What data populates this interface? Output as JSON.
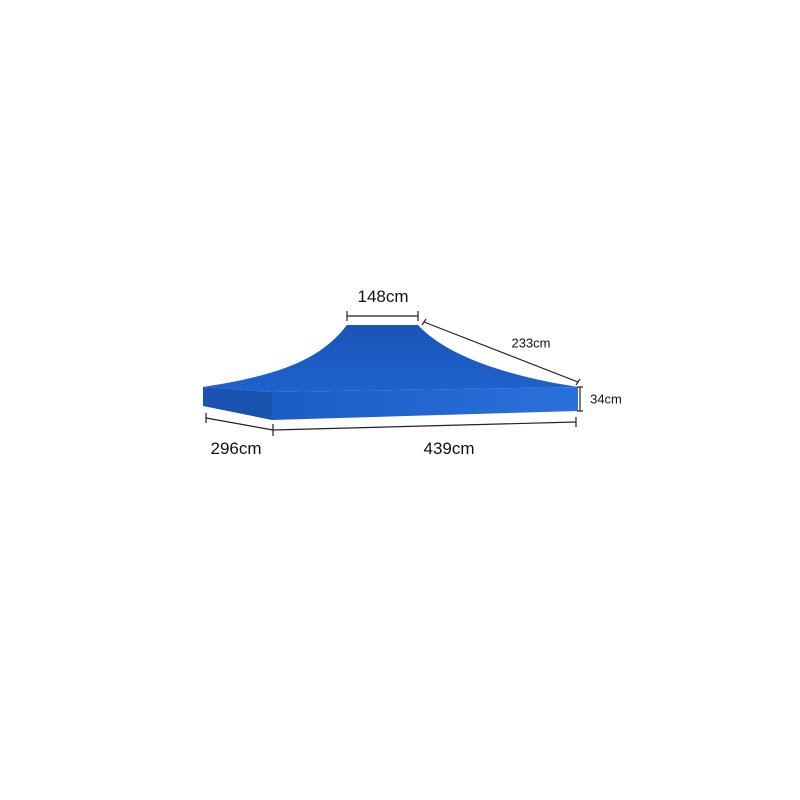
{
  "product": {
    "color": "#1f5fc4",
    "dimensions": {
      "top_width": "148cm",
      "slope_length": "233cm",
      "valance_height": "34cm",
      "depth": "296cm",
      "length": "439cm"
    }
  }
}
